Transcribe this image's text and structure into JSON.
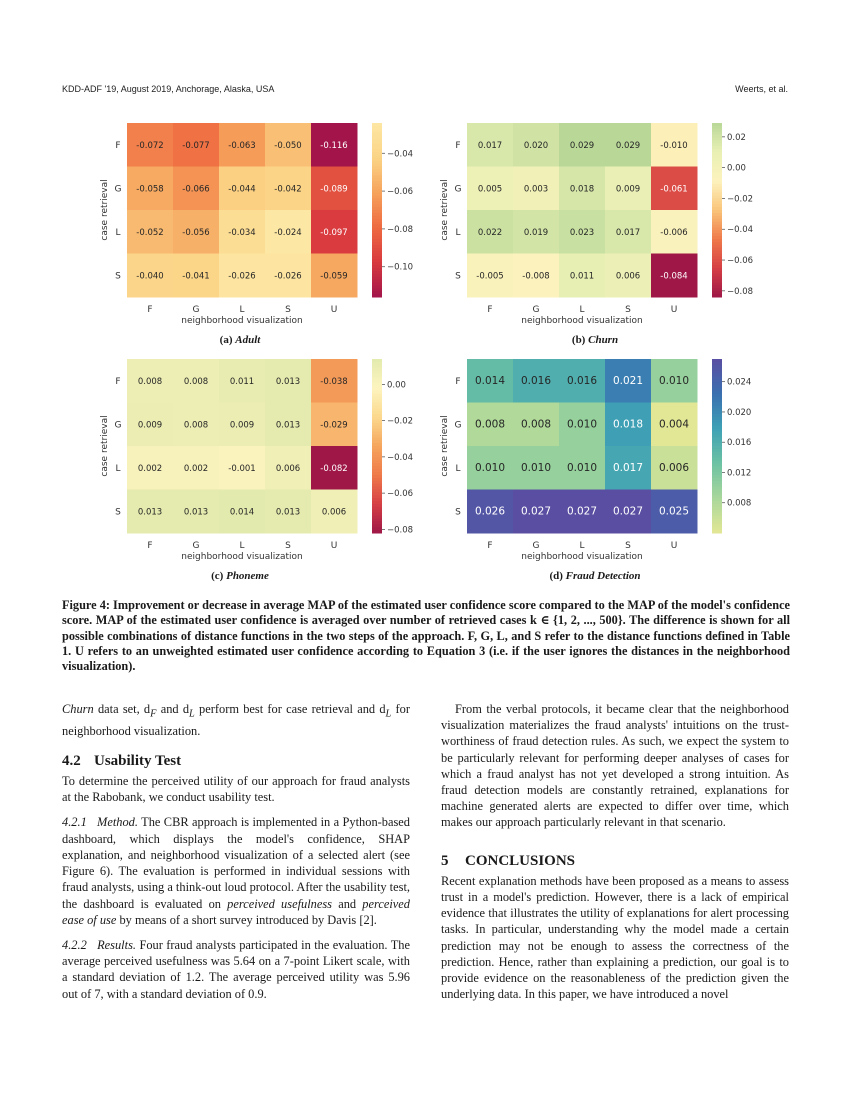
{
  "header": {
    "left": "KDD-ADF '19, August 2019, Anchorage, Alaska, USA",
    "right": "Weerts, et al."
  },
  "chart_data": [
    {
      "type": "heatmap",
      "id": "a",
      "caption_prefix": "(a)",
      "title": "Adult",
      "xlabel": "neighborhood visualization",
      "ylabel": "case retrieval",
      "rows": [
        "F",
        "G",
        "L",
        "S"
      ],
      "cols": [
        "F",
        "G",
        "L",
        "S",
        "U"
      ],
      "values": [
        [
          -0.072,
          -0.077,
          -0.063,
          -0.05,
          -0.116
        ],
        [
          -0.058,
          -0.066,
          -0.044,
          -0.042,
          -0.089
        ],
        [
          -0.052,
          -0.056,
          -0.034,
          -0.024,
          -0.097
        ],
        [
          -0.04,
          -0.041,
          -0.026,
          -0.026,
          -0.059
        ]
      ],
      "labels": [
        [
          "-0.072",
          "-0.077",
          "-0.063",
          "-0.050",
          "-0.116"
        ],
        [
          "-0.058",
          "-0.066",
          "-0.044",
          "-0.042",
          "-0.089"
        ],
        [
          "-0.052",
          "-0.056",
          "-0.034",
          "-0.024",
          "-0.097"
        ],
        [
          "-0.040",
          "-0.041",
          "-0.026",
          "-0.026",
          "-0.059"
        ]
      ],
      "vmin": -0.116,
      "vmax": -0.024,
      "colorbar_ticks": [
        -0.04,
        -0.06,
        -0.08,
        -0.1
      ],
      "colorbar_tick_labels": [
        "−0.04",
        "−0.06",
        "−0.08",
        "−0.10"
      ],
      "colormap": [
        "#a3154a",
        "#d8393f",
        "#ee6a41",
        "#f6a35c",
        "#fbd486",
        "#fde7a4"
      ],
      "show_ylabel": false
    },
    {
      "type": "heatmap",
      "id": "b",
      "caption_prefix": "(b)",
      "title": "Churn",
      "xlabel": "neighborhood visualization",
      "ylabel": "case retrieval",
      "rows": [
        "F",
        "G",
        "L",
        "S"
      ],
      "cols": [
        "F",
        "G",
        "L",
        "S",
        "U"
      ],
      "values": [
        [
          0.017,
          0.02,
          0.029,
          0.029,
          -0.01
        ],
        [
          0.005,
          0.003,
          0.018,
          0.009,
          -0.061
        ],
        [
          0.022,
          0.019,
          0.023,
          0.017,
          -0.006
        ],
        [
          -0.005,
          -0.008,
          0.011,
          0.006,
          -0.084
        ]
      ],
      "labels": [
        [
          "0.017",
          "0.020",
          "0.029",
          "0.029",
          "-0.010"
        ],
        [
          "0.005",
          "0.003",
          "0.018",
          "0.009",
          "-0.061"
        ],
        [
          "0.022",
          "0.019",
          "0.023",
          "0.017",
          "-0.006"
        ],
        [
          "-0.005",
          "-0.008",
          "0.011",
          "0.006",
          "-0.084"
        ]
      ],
      "vmin": -0.084,
      "vmax": 0.029,
      "colorbar_ticks": [
        0.02,
        0.0,
        -0.02,
        -0.04,
        -0.06,
        -0.08
      ],
      "colorbar_tick_labels": [
        "0.02",
        "0.00",
        "−0.02",
        "−0.04",
        "−0.06",
        "−0.08"
      ],
      "colormap": [
        "#9e1746",
        "#d63f45",
        "#ef7a4a",
        "#f9c57a",
        "#fdf2bd",
        "#e9f0b4",
        "#b9d898"
      ],
      "show_ylabel": true
    },
    {
      "type": "heatmap",
      "id": "c",
      "caption_prefix": "(c)",
      "title": "Phoneme",
      "xlabel": "neighborhood visualization",
      "ylabel": "case retrieval",
      "rows": [
        "F",
        "G",
        "L",
        "S"
      ],
      "cols": [
        "F",
        "G",
        "L",
        "S",
        "U"
      ],
      "values": [
        [
          0.008,
          0.008,
          0.011,
          0.013,
          -0.038
        ],
        [
          0.009,
          0.008,
          0.009,
          0.013,
          -0.029
        ],
        [
          0.002,
          0.002,
          -0.001,
          0.006,
          -0.082
        ],
        [
          0.013,
          0.013,
          0.014,
          0.013,
          0.006
        ]
      ],
      "labels": [
        [
          "0.008",
          "0.008",
          "0.011",
          "0.013",
          "-0.038"
        ],
        [
          "0.009",
          "0.008",
          "0.009",
          "0.013",
          "-0.029"
        ],
        [
          "0.002",
          "0.002",
          "-0.001",
          "0.006",
          "-0.082"
        ],
        [
          "0.013",
          "0.013",
          "0.014",
          "0.013",
          "0.006"
        ]
      ],
      "vmin": -0.082,
      "vmax": 0.014,
      "colorbar_ticks": [
        0.0,
        -0.02,
        -0.04,
        -0.06,
        -0.08
      ],
      "colorbar_tick_labels": [
        "0.00",
        "−0.02",
        "−0.04",
        "−0.06",
        "−0.08"
      ],
      "colormap": [
        "#9e1746",
        "#d63f45",
        "#ef7a4a",
        "#f5a55e",
        "#fbd98e",
        "#fdf4bf",
        "#e3eaad"
      ],
      "show_ylabel": true
    },
    {
      "type": "heatmap",
      "id": "d",
      "caption_prefix": "(d)",
      "title": "Fraud Detection",
      "xlabel": "neighborhood visualization",
      "ylabel": "case retrieval",
      "rows": [
        "F",
        "G",
        "L",
        "S"
      ],
      "cols": [
        "F",
        "G",
        "L",
        "S",
        "U"
      ],
      "values": [
        [
          0.014,
          0.016,
          0.016,
          0.021,
          0.01
        ],
        [
          0.008,
          0.008,
          0.01,
          0.018,
          0.004
        ],
        [
          0.01,
          0.01,
          0.01,
          0.017,
          0.006
        ],
        [
          0.026,
          0.027,
          0.027,
          0.027,
          0.025
        ]
      ],
      "labels": [
        [
          "0.014",
          "0.016",
          "0.016",
          "0.021",
          "0.010"
        ],
        [
          "0.008",
          "0.008",
          "0.010",
          "0.018",
          "0.004"
        ],
        [
          "0.010",
          "0.010",
          "0.010",
          "0.017",
          "0.006"
        ],
        [
          "0.026",
          "0.027",
          "0.027",
          "0.027",
          "0.025"
        ]
      ],
      "vmin": 0.004,
      "vmax": 0.027,
      "colorbar_ticks": [
        0.024,
        0.02,
        0.016,
        0.012,
        0.008
      ],
      "colorbar_tick_labels": [
        "0.024",
        "0.020",
        "0.016",
        "0.012",
        "0.008"
      ],
      "colormap": [
        "#e2e795",
        "#a9d79b",
        "#6cc2a3",
        "#3ea1b5",
        "#3a6fb0",
        "#5a4ea2"
      ],
      "show_ylabel": true
    }
  ],
  "figure_caption": "Figure 4: Improvement or decrease in average MAP of the estimated user confidence score compared to the MAP of the model's confidence score. MAP of the estimated user confidence is averaged over number of retrieved cases k ∈ {1, 2, ..., 500}. The difference is shown for all possible combinations of distance functions in the two steps of the approach. F, G, L, and S refer to the distance functions defined in Table 1. U refers to an unweighted estimated user confidence according to Equation 3 (i.e. if the user ignores the distances in the neighborhood visualization).",
  "left_column": {
    "p1": {
      "a": "Churn",
      "b": " data set, d",
      "b_sub": "F",
      "c": " and d",
      "c_sub": "L",
      "d": " perform best for case retrieval and d",
      "d_sub": "L",
      "e": " for neighborhood visualization."
    },
    "section_num": "4.2",
    "section_title": "Usability Test",
    "p2": "To determine the perceived utility of our approach for fraud analysts at the Rabobank, we conduct usability test.",
    "p3": {
      "head": "4.2.1   Method.",
      "a": " The CBR approach is implemented in a Python-based dashboard, which displays the model's confidence, SHAP explanation, and neighborhood visualization of a selected alert (see Figure 6). The evaluation is performed in individual sessions with fraud analysts, using a think-out loud protocol. After the usability test, the dashboard is evaluated on ",
      "b": "perceived usefulness",
      "c": " and ",
      "d": "perceived ease of use",
      "e": " by means of a short survey introduced by Davis [2]."
    },
    "p4": {
      "head": "4.2.2   Results.",
      "a": " Four fraud analysts participated in the evaluation. The average perceived usefulness was 5.64 on a 7-point Likert scale, with a standard deviation of 1.2. The average perceived utility was 5.96 out of 7, with a standard deviation of 0.9."
    }
  },
  "right_column": {
    "p1": "From the verbal protocols, it became clear that the neighborhood visualization materializes the fraud analysts' intuitions on the trust-worthiness of fraud detection rules. As such, we expect the system to be particularly relevant for performing deeper analyses of cases for which a fraud analyst has not yet developed a strong intuition. As fraud detection models are constantly retrained, explanations for machine generated alerts are expected to differ over time, which makes our approach particularly relevant in that scenario.",
    "section_num": "5",
    "section_title": "CONCLUSIONS",
    "p2": "Recent explanation methods have been proposed as a means to assess trust in a model's prediction. However, there is a lack of empirical evidence that illustrates the utility of explanations for alert processing tasks. In particular, understanding why the model made a certain prediction may not be enough to assess the correctness of the prediction. Hence, rather than explaining a prediction, our goal is to provide evidence on the reasonableness of the prediction given the underlying data. In this paper, we have introduced a novel"
  }
}
